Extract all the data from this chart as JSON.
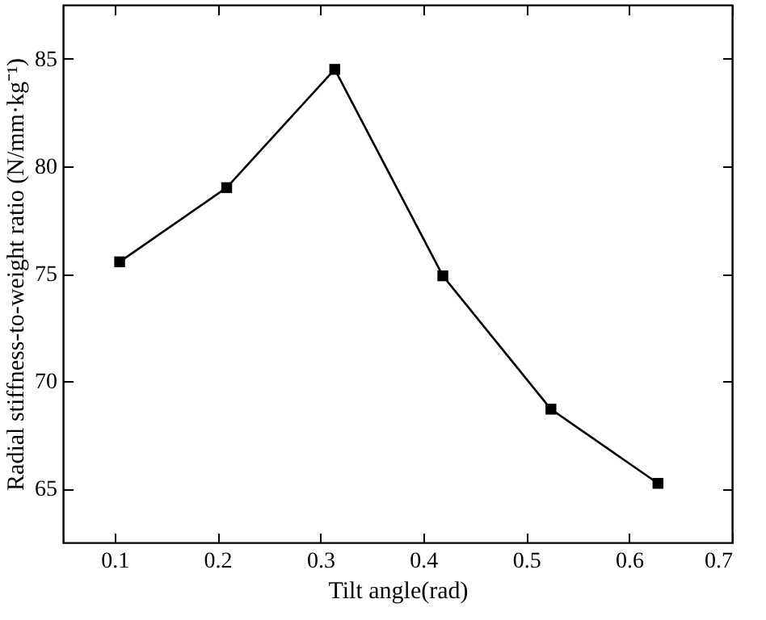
{
  "chart_data": {
    "type": "line",
    "xlabel": "Tilt angle(rad)",
    "ylabel": "Radial stiffness-to-weight ratio (N/mm·kg⁻¹)",
    "x": [
      0.105,
      0.209,
      0.314,
      0.419,
      0.524,
      0.628
    ],
    "series": [
      {
        "color": "#000000",
        "values": [
          75.55,
          79.0,
          84.5,
          74.9,
          68.7,
          65.25
        ]
      }
    ],
    "xlim": [
      0.05,
      0.7
    ],
    "xticks": [
      0.1,
      0.2,
      0.3,
      0.4,
      0.5,
      0.6,
      0.7
    ],
    "ylim": [
      62.5,
      87.5
    ],
    "yticks": [
      65,
      70,
      75,
      80,
      85
    ],
    "marker": "square",
    "line_style": "solid",
    "grid": false,
    "legend": false
  }
}
